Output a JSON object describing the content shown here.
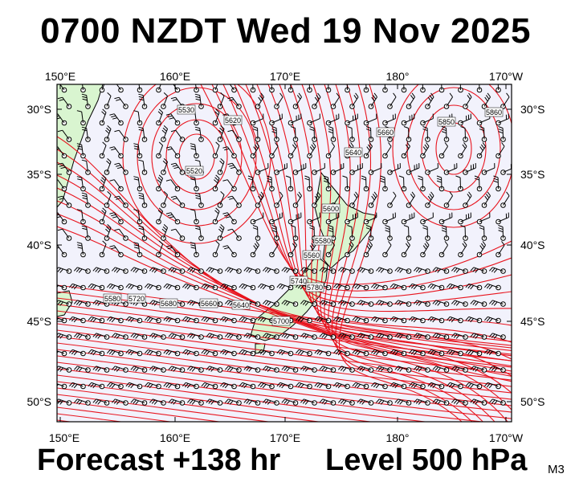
{
  "header": {
    "title": "0700 NZDT Wed 19 Nov 2025"
  },
  "footer": {
    "forecast": "Forecast +138 hr",
    "level": "Level 500 hPa",
    "model": "M3"
  },
  "map": {
    "lon_labels": [
      "150°E",
      "160°E",
      "170°E",
      "180°",
      "170°W"
    ],
    "lat_labels": [
      "30°S",
      "35°S",
      "40°S",
      "45°S",
      "50°S"
    ],
    "contour_labels": [
      "5530",
      "5520",
      "5620",
      "5640",
      "5660",
      "5600",
      "5580",
      "5560",
      "5700",
      "5740",
      "5780",
      "5640",
      "5660",
      "5680",
      "5720",
      "5850",
      "5860",
      "5580"
    ],
    "colors": {
      "contour": "#e8141e",
      "land": "#d9f5d0",
      "sea": "#f2f2fc",
      "barb": "#000000"
    }
  }
}
